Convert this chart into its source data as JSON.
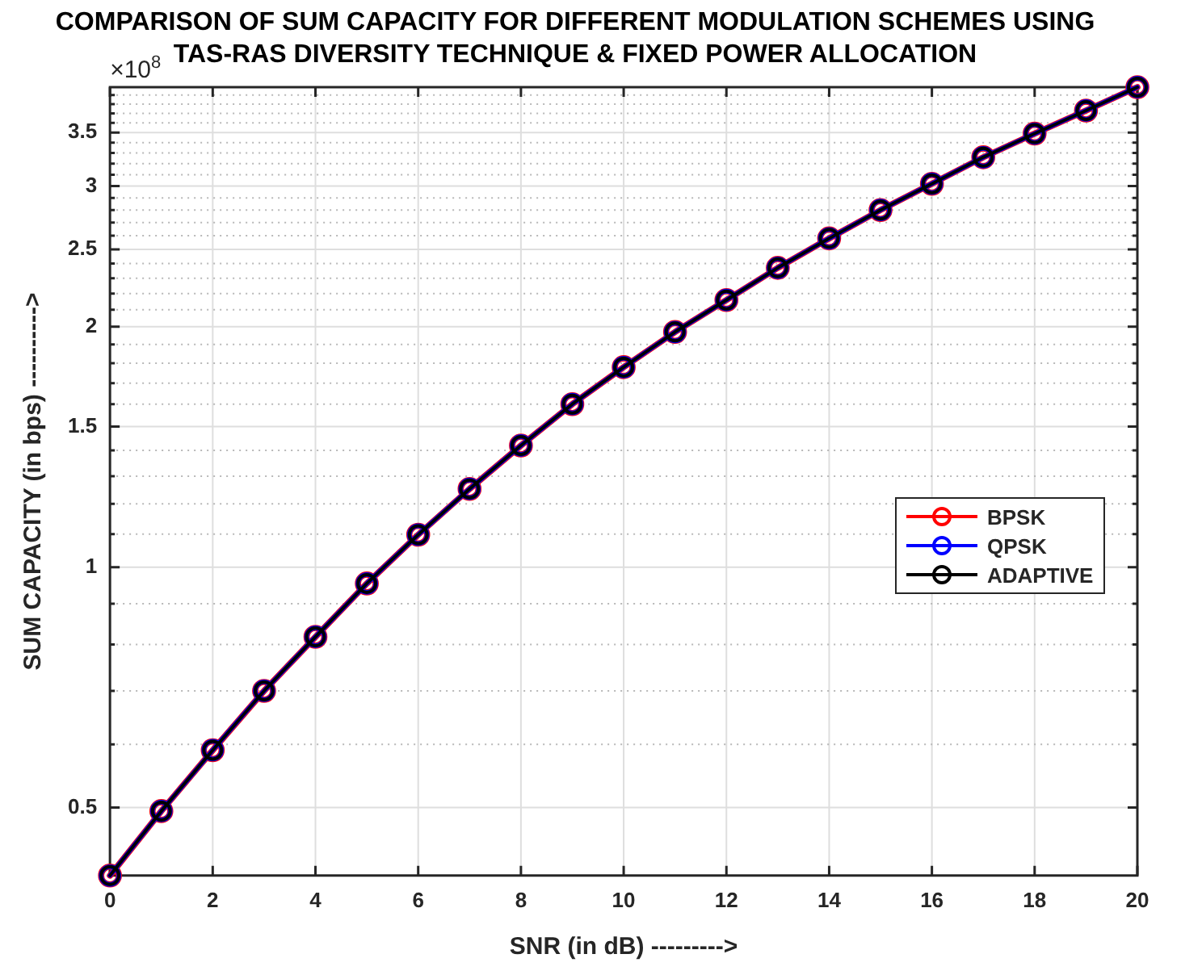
{
  "chart_data": {
    "type": "line",
    "title": "COMPARISON OF SUM CAPACITY FOR DIFFERENT MODULATION SCHEMES USING\nTAS-RAS DIVERSITY TECHNIQUE & FIXED POWER ALLOCATION",
    "xlabel": "SNR (in dB) --------->",
    "ylabel": "SUM CAPACITY (in bps) ---------->",
    "annotations": [
      "×10$^{8}$"
    ],
    "x": [
      0,
      1,
      2,
      3,
      4,
      5,
      6,
      7,
      8,
      9,
      10,
      11,
      12,
      13,
      14,
      15,
      16,
      17,
      18,
      19,
      20
    ],
    "series": [
      {
        "name": "BPSK",
        "color": "#ff0000",
        "values": [
          0.411,
          0.495,
          0.59,
          0.7,
          0.818,
          0.954,
          1.098,
          1.253,
          1.42,
          1.6,
          1.78,
          1.97,
          2.16,
          2.37,
          2.58,
          2.8,
          3.02,
          3.26,
          3.49,
          3.73,
          3.99
        ]
      },
      {
        "name": "QPSK",
        "color": "#0000ff",
        "values": [
          0.411,
          0.495,
          0.59,
          0.7,
          0.818,
          0.954,
          1.098,
          1.253,
          1.42,
          1.6,
          1.78,
          1.97,
          2.16,
          2.37,
          2.58,
          2.8,
          3.02,
          3.26,
          3.49,
          3.73,
          3.99
        ]
      },
      {
        "name": "ADAPTIVE",
        "color": "#000000",
        "values": [
          0.411,
          0.495,
          0.59,
          0.7,
          0.818,
          0.954,
          1.098,
          1.253,
          1.42,
          1.6,
          1.78,
          1.97,
          2.16,
          2.37,
          2.58,
          2.8,
          3.02,
          3.26,
          3.49,
          3.73,
          3.99
        ]
      }
    ],
    "xlim": [
      0,
      20
    ],
    "xticks": [
      0,
      2,
      4,
      6,
      8,
      10,
      12,
      14,
      16,
      18,
      20
    ],
    "ylim": [
      0.411,
      3.99
    ],
    "yticks": [
      0.5,
      {
        "value": 0.6,
        "label": null
      },
      {
        "value": 0.7,
        "label": null
      },
      {
        "value": 0.8,
        "label": null
      },
      {
        "value": 0.9,
        "label": null
      },
      1,
      {
        "value": 1.1,
        "label": null
      },
      {
        "value": 1.2,
        "label": null
      },
      {
        "value": 1.3,
        "label": null
      },
      {
        "value": 1.4,
        "label": null
      },
      1.5,
      {
        "value": 1.6,
        "label": null
      },
      {
        "value": 1.7,
        "label": null
      },
      {
        "value": 1.8,
        "label": null
      },
      {
        "value": 1.9,
        "label": null
      },
      2,
      {
        "value": 2.1,
        "label": null
      },
      {
        "value": 2.2,
        "label": null
      },
      {
        "value": 2.3,
        "label": null
      },
      {
        "value": 2.4,
        "label": null
      },
      2.5,
      {
        "value": 2.6,
        "label": null
      },
      {
        "value": 2.7,
        "label": null
      },
      {
        "value": 2.8,
        "label": null
      },
      {
        "value": 2.9,
        "label": null
      },
      3,
      {
        "value": 3.1,
        "label": null
      },
      {
        "value": 3.2,
        "label": null
      },
      {
        "value": 3.3,
        "label": null
      },
      {
        "value": 3.4,
        "label": null
      },
      3.5,
      {
        "value": 3.6,
        "label": null
      },
      {
        "value": 3.7,
        "label": null
      },
      {
        "value": 3.8,
        "label": null
      },
      {
        "value": 3.9,
        "label": null
      }
    ],
    "log": "y",
    "grid": true,
    "legend": "right",
    "marker": "circle",
    "line_style": "solid"
  }
}
